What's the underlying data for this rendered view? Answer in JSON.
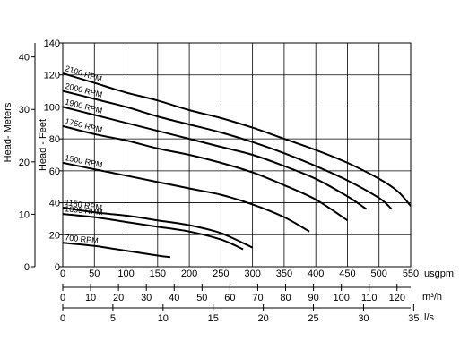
{
  "chart_data": {
    "type": "line",
    "title": "",
    "xlabel": "usgpm",
    "ylabel": "Head - Feet",
    "xlim": [
      0,
      550
    ],
    "ylim": [
      0,
      140
    ],
    "grid": true,
    "x_ticks": [
      "0",
      "50",
      "100",
      "150",
      "200",
      "250",
      "300",
      "350",
      "400",
      "450",
      "500",
      "550"
    ],
    "y_ticks": [
      "0",
      "20",
      "40",
      "60",
      "80",
      "100",
      "120",
      "140"
    ],
    "secondary_y_axis": {
      "label": "Head- Meters",
      "range": [
        0,
        42.67
      ],
      "ticks": [
        "0",
        "10",
        "20",
        "30",
        "40"
      ]
    },
    "secondary_x_axes": [
      {
        "unit": "m³/h",
        "range": [
          0,
          124.9
        ],
        "ticks": [
          "0",
          "10",
          "20",
          "30",
          "40",
          "50",
          "60",
          "70",
          "80",
          "90",
          "100",
          "110",
          "120"
        ]
      },
      {
        "unit": "l/s",
        "range": [
          0,
          34.7
        ],
        "ticks": [
          "0",
          "5",
          "10",
          "15",
          "20",
          "25",
          "30",
          "35"
        ]
      }
    ],
    "series": [
      {
        "name": "2100 RPM",
        "x": [
          0,
          50,
          100,
          150,
          200,
          250,
          300,
          350,
          400,
          450,
          500,
          530,
          550
        ],
        "y": [
          121,
          115,
          109,
          104,
          98,
          93,
          87,
          80,
          73,
          65,
          55,
          47,
          38
        ]
      },
      {
        "name": "2000 RPM",
        "x": [
          0,
          50,
          100,
          150,
          200,
          250,
          300,
          350,
          400,
          450,
          500,
          520
        ],
        "y": [
          110,
          105,
          100,
          94,
          89,
          84,
          78,
          71,
          63,
          54,
          43,
          36
        ]
      },
      {
        "name": "1900 RPM",
        "x": [
          0,
          50,
          100,
          150,
          200,
          250,
          300,
          350,
          400,
          450,
          480
        ],
        "y": [
          100,
          95,
          90,
          85,
          80,
          75,
          70,
          63,
          55,
          44,
          36
        ]
      },
      {
        "name": "1750 RPM",
        "x": [
          0,
          50,
          100,
          150,
          200,
          250,
          300,
          350,
          400,
          450
        ],
        "y": [
          88,
          83,
          79,
          74,
          70,
          65,
          59,
          51,
          42,
          29
        ]
      },
      {
        "name": "1500 RPM",
        "x": [
          0,
          50,
          100,
          150,
          200,
          250,
          300,
          350,
          390
        ],
        "y": [
          65,
          61,
          57,
          53,
          49,
          45,
          39,
          31,
          22
        ]
      },
      {
        "name": "1150 RPM",
        "x": [
          0,
          50,
          100,
          150,
          200,
          250,
          300
        ],
        "y": [
          37,
          34,
          32,
          29,
          26,
          21,
          12
        ]
      },
      {
        "name": "1095 RPM",
        "x": [
          0,
          50,
          100,
          150,
          200,
          250,
          285
        ],
        "y": [
          33,
          31,
          28,
          25,
          22,
          17,
          11
        ]
      },
      {
        "name": "700 RPM",
        "x": [
          0,
          50,
          100,
          150,
          170
        ],
        "y": [
          15,
          13,
          10,
          7,
          6
        ]
      }
    ]
  }
}
